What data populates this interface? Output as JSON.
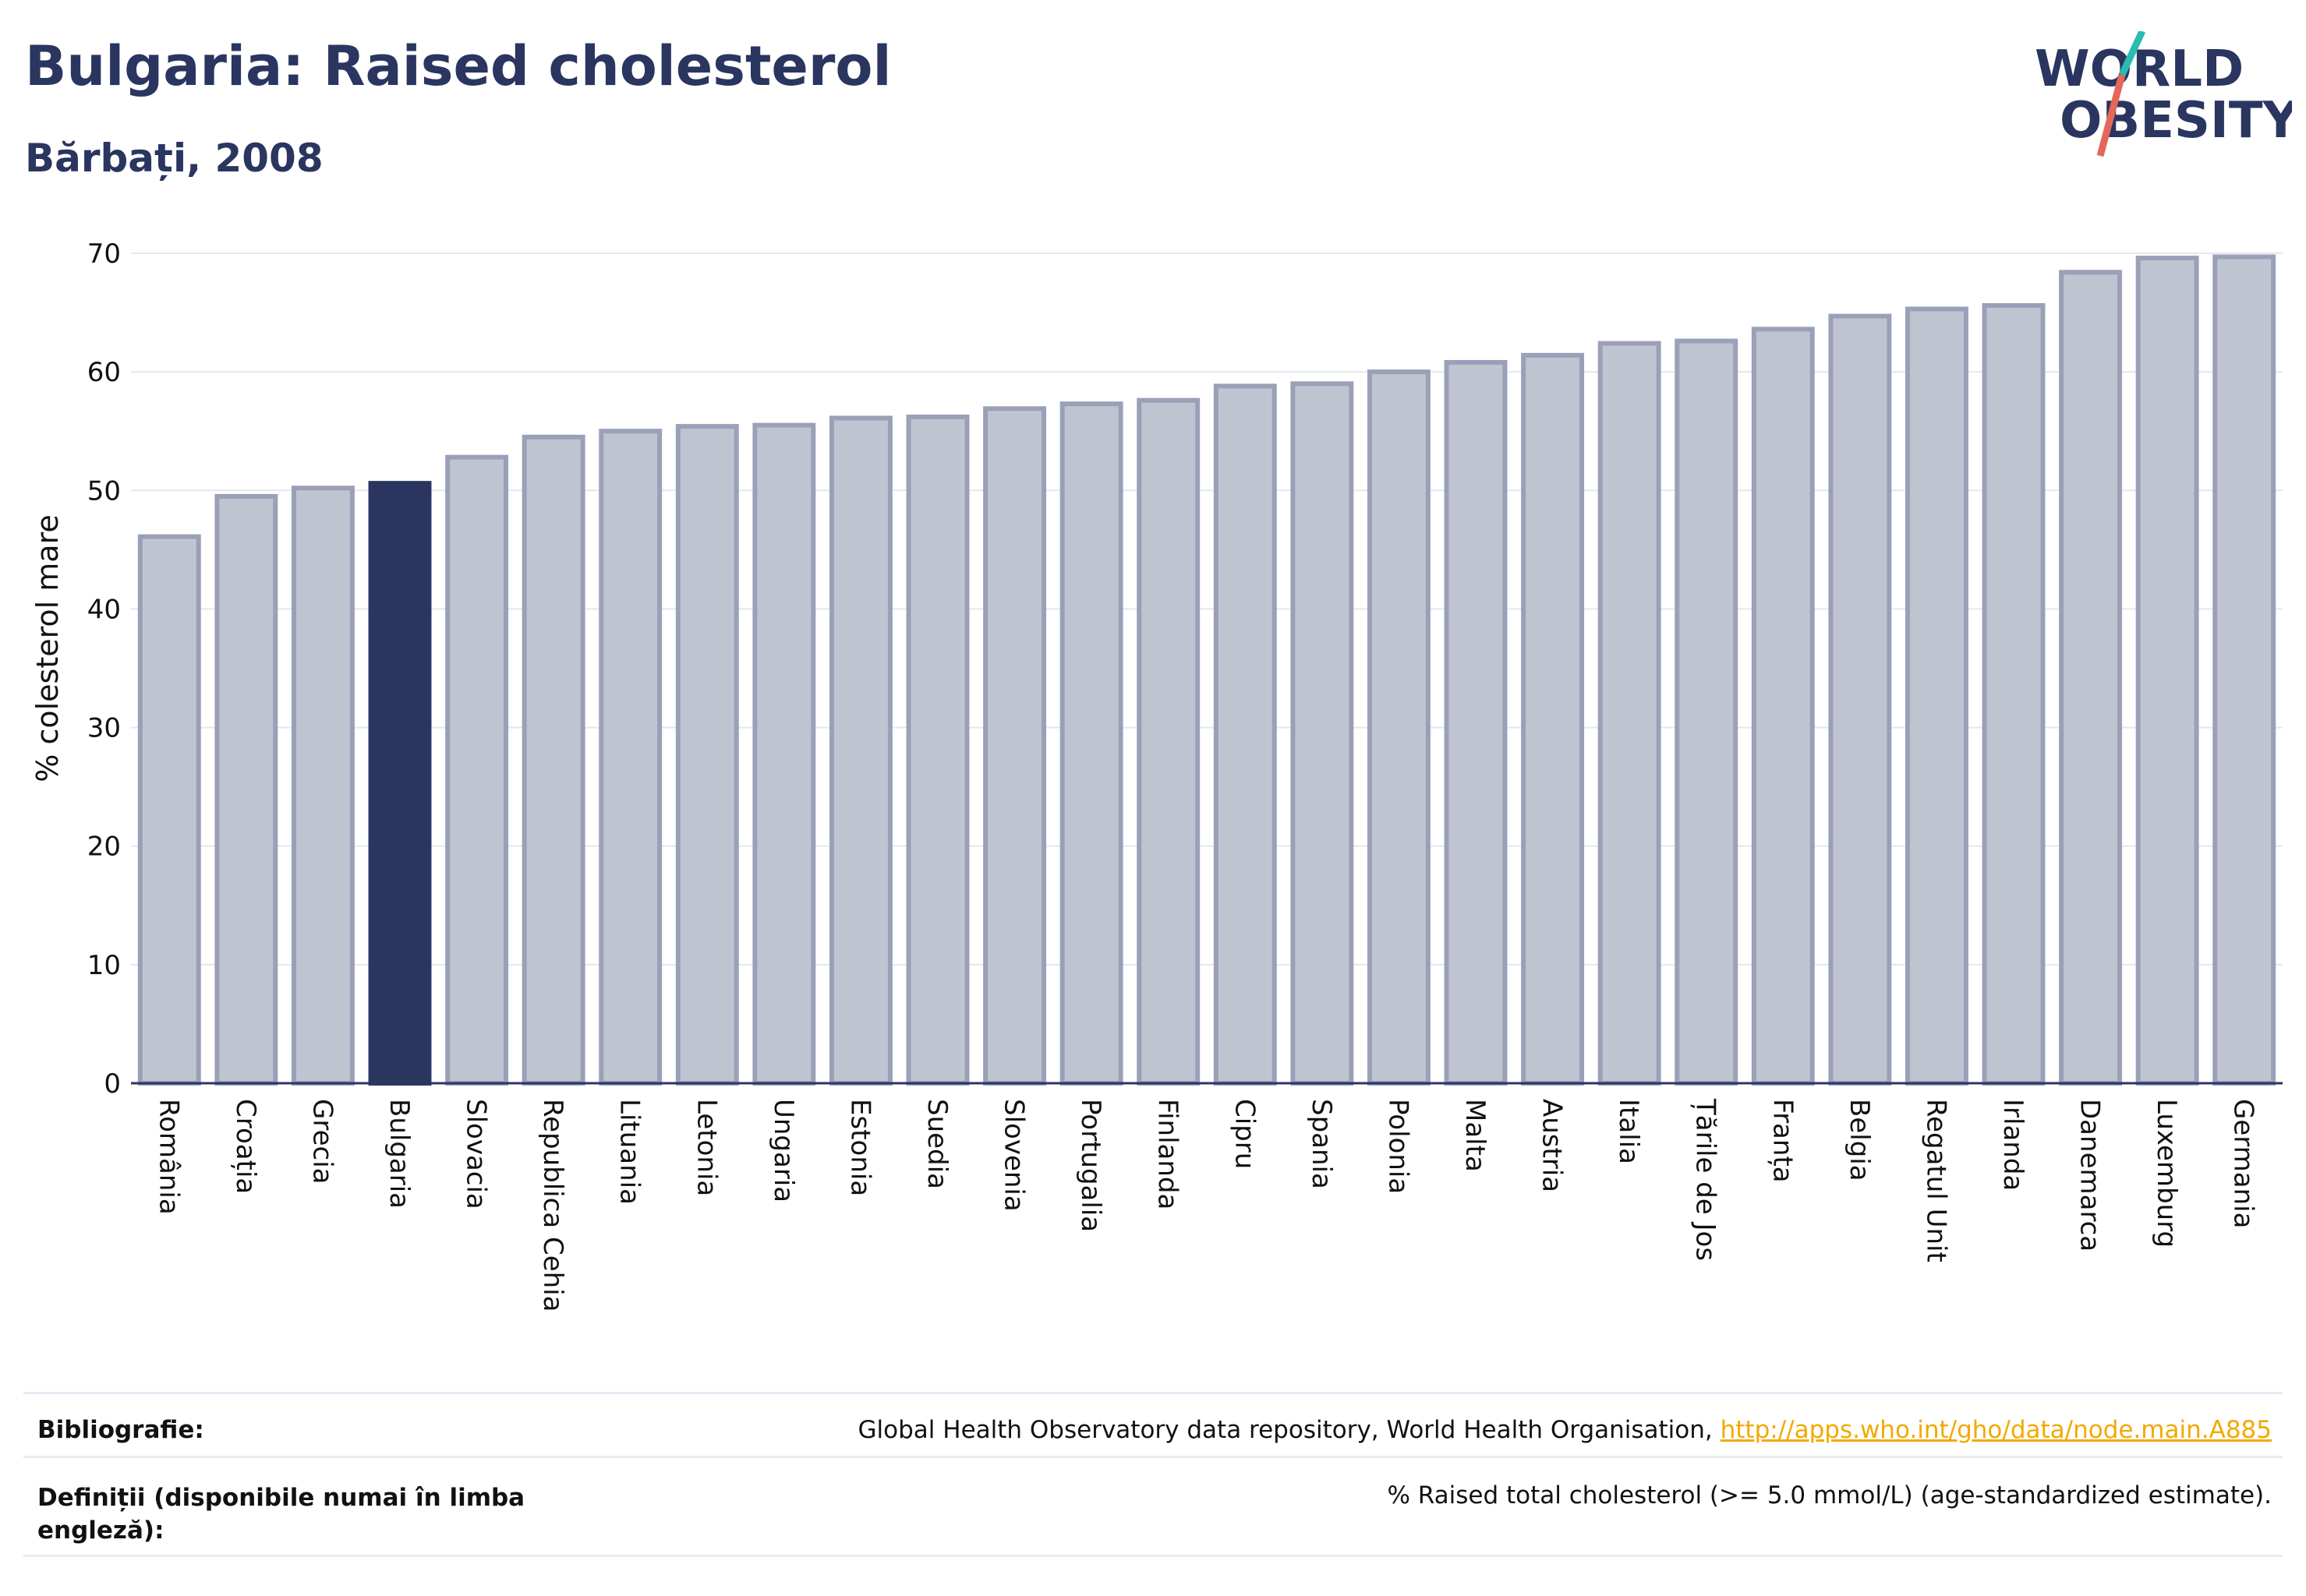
{
  "header": {
    "title": "Bulgaria: Raised cholesterol",
    "subtitle": "Bărbați, 2008"
  },
  "logo": {
    "line1": "WORLD",
    "line2": "OBESITY"
  },
  "chart_data": {
    "type": "bar",
    "ylabel": "% colesterol mare",
    "ylim": [
      0,
      70
    ],
    "yticks": [
      "0",
      "10",
      "20",
      "30",
      "40",
      "50",
      "60",
      "70"
    ],
    "categories": [
      "România",
      "Croația",
      "Grecia",
      "Bulgaria",
      "Slovacia",
      "Republica Cehia",
      "Lituania",
      "Letonia",
      "Ungaria",
      "Estonia",
      "Suedia",
      "Slovenia",
      "Portugalia",
      "Finlanda",
      "Cipru",
      "Spania",
      "Polonia",
      "Malta",
      "Austria",
      "Italia",
      "Țările de Jos",
      "Franța",
      "Belgia",
      "Regatul Unit",
      "Irlanda",
      "Danemarca",
      "Luxemburg",
      "Germania"
    ],
    "values": [
      46.1,
      49.5,
      50.2,
      50.6,
      52.8,
      54.5,
      55.0,
      55.4,
      55.5,
      56.1,
      56.2,
      56.9,
      57.3,
      57.6,
      58.8,
      59.0,
      60.0,
      60.8,
      61.4,
      62.4,
      62.6,
      63.6,
      64.7,
      65.3,
      65.6,
      68.4,
      69.6,
      69.7
    ],
    "highlight": "Bulgaria",
    "colors": {
      "bar": "#c0c4d1",
      "bar_border": "#9aa0b8",
      "highlight": "#2a3560",
      "grid": "#e4e7ef",
      "axis": "#2a3560"
    }
  },
  "footer": {
    "bibliography_label": "Bibliografie:",
    "bibliography_text": "Global Health Observatory data repository, World Health Organisation, ",
    "bibliography_link": "http://apps.who.int/gho/data/node.main.A885",
    "definitions_label": "Definiții (disponibile numai în limba engleză):",
    "definitions_text": "% Raised total cholesterol (>= 5.0 mmol/L) (age-standardized estimate)."
  }
}
